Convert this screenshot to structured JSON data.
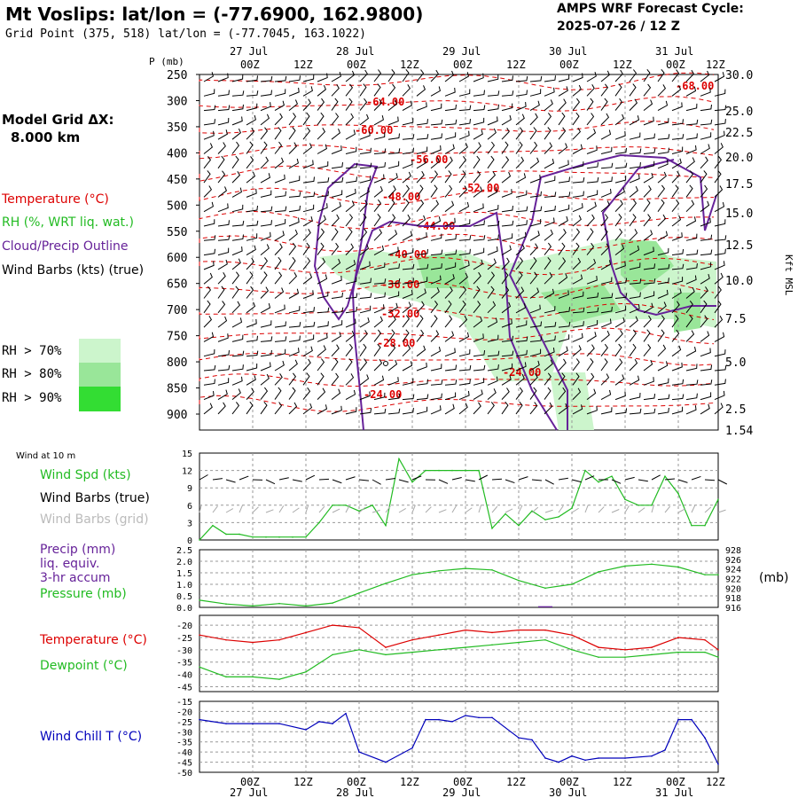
{
  "header": {
    "title": "Mt Voslips:  lat/lon = (-77.6900, 162.9800)",
    "grid_point": "Grid Point (375, 518) lat/lon = (-77.7045, 163.1022)",
    "cycle_line1": "AMPS WRF Forecast Cycle:",
    "cycle_line2": "2025-07-26 / 12  Z"
  },
  "sidebar": {
    "model_grid_label": "Model Grid ΔX:",
    "model_grid_value": "8.000 km",
    "legend_temperature": "Temperature (°C)",
    "legend_rh": "RH (%, WRT liq. wat.)",
    "legend_cloud": "Cloud/Precip Outline",
    "legend_wind": "Wind Barbs (kts) (true)",
    "rh_levels": [
      "RH > 70%",
      "RH > 80%",
      "RH > 90%"
    ],
    "rh_colors": [
      "#ccf5cc",
      "#99e699",
      "#33dd33"
    ]
  },
  "time_axis": {
    "hour_labels": [
      "00Z",
      "12Z",
      "00Z",
      "12Z",
      "00Z",
      "12Z",
      "00Z",
      "12Z",
      "00Z",
      "12Z"
    ],
    "date_labels": [
      "27 Jul",
      "28 Jul",
      "29 Jul",
      "30 Jul",
      "31 Jul"
    ]
  },
  "colors": {
    "temperature": "#dd0000",
    "rh_line": "#22bb22",
    "cloud": "#662299",
    "wind_chill": "#0000bb",
    "grid": "#999999",
    "precip": "#662299"
  },
  "chart_data": [
    {
      "type": "heatmap",
      "name": "cross-section",
      "ylabel": "P (mb)",
      "y2label": "Kft MSL",
      "pressure_ticks": [
        250,
        300,
        350,
        400,
        450,
        500,
        550,
        600,
        650,
        700,
        750,
        800,
        850,
        900
      ],
      "height_ticks": [
        "30.0",
        "25.0",
        "22.5",
        "20.0",
        "17.5",
        "15.0",
        "12.5",
        "10.0",
        "7.5",
        "5.0",
        "2.5",
        "1.54"
      ],
      "temperature_labels": [
        "-68.00",
        "-64.00",
        "-60.00",
        "-56.00",
        "-52.00",
        "-48.00",
        "-44.00",
        "-40.00",
        "-36.00",
        "-32.00",
        "-28.00",
        "-24.00",
        "-24.00"
      ]
    },
    {
      "type": "line",
      "name": "wind",
      "header": "Wind at 10 m",
      "labels": [
        "Wind Spd (kts)",
        "Wind Barbs (true)",
        "Wind Barbs (grid)"
      ],
      "yticks": [
        "15",
        "12",
        "9",
        "6",
        "3",
        "0"
      ],
      "ylim": [
        0,
        15
      ],
      "x": [
        0,
        3,
        6,
        9,
        12,
        15,
        18,
        21,
        24,
        27,
        30,
        33,
        36,
        39,
        42,
        45,
        48,
        51,
        54,
        57,
        60,
        63,
        66,
        69,
        72,
        75,
        78,
        81,
        84,
        87,
        90,
        93,
        96,
        99,
        102,
        105,
        108,
        111,
        114,
        117
      ],
      "values": [
        0,
        2.5,
        1,
        1,
        0.5,
        0.5,
        0.5,
        0.5,
        0.5,
        3,
        6,
        6,
        5,
        6,
        2.5,
        14,
        10,
        12,
        12,
        12,
        12,
        12,
        2,
        4.5,
        2.5,
        5,
        3.5,
        4,
        5.5,
        12,
        10,
        11,
        7,
        6,
        6,
        11,
        8,
        2.5,
        2.5,
        7
      ]
    },
    {
      "type": "line",
      "name": "precip-pressure",
      "labels": [
        "Precip (mm)",
        "liq. equiv.",
        "3-hr accum",
        "Pressure (mb)"
      ],
      "unit_right": "(mb)",
      "yticks_left": [
        "2.5",
        "2.0",
        "1.5",
        "1.0",
        "0.5",
        "0.0"
      ],
      "yticks_right": [
        "928",
        "926",
        "924",
        "922",
        "920",
        "918",
        "916"
      ],
      "ylim_left": [
        0,
        2.5
      ],
      "ylim_right": [
        916,
        928
      ],
      "x": [
        0,
        6,
        12,
        18,
        24,
        30,
        36,
        42,
        48,
        54,
        60,
        66,
        72,
        78,
        84,
        90,
        96,
        102,
        108,
        114,
        117
      ],
      "pressure": [
        917.5,
        916.7,
        916.3,
        916.8,
        916.3,
        916.9,
        919.0,
        921.0,
        922.8,
        923.6,
        924.1,
        923.8,
        921.6,
        920.0,
        920.8,
        923.4,
        924.6,
        925.0,
        924.4,
        922.8,
        922.8
      ],
      "precip_x": [
        78
      ],
      "precip_values": [
        0.05
      ]
    },
    {
      "type": "line",
      "name": "temperature-dewpoint",
      "labels": [
        "Temperature (°C)",
        "Dewpoint (°C)"
      ],
      "yticks": [
        "-20",
        "-25",
        "-30",
        "-35",
        "-40",
        "-45"
      ],
      "ylim": [
        -47,
        -16
      ],
      "x": [
        0,
        6,
        12,
        18,
        24,
        30,
        36,
        42,
        48,
        54,
        60,
        66,
        72,
        78,
        84,
        90,
        96,
        102,
        108,
        114,
        117
      ],
      "temperature": [
        -24,
        -26,
        -27,
        -26,
        -23,
        -20,
        -21,
        -29,
        -26,
        -24,
        -22,
        -23,
        -22,
        -22,
        -24,
        -29,
        -30,
        -29,
        -25,
        -26,
        -30
      ],
      "dewpoint": [
        -37,
        -41,
        -41,
        -42,
        -39,
        -32,
        -30,
        -32,
        -31,
        -30,
        -29,
        -28,
        -27,
        -26,
        -30,
        -33,
        -33,
        -32,
        -31,
        -31,
        -33
      ]
    },
    {
      "type": "line",
      "name": "wind-chill",
      "labels": [
        "Wind Chill T (°C)"
      ],
      "yticks": [
        "-15",
        "-20",
        "-25",
        "-30",
        "-35",
        "-40",
        "-45",
        "-50"
      ],
      "ylim": [
        -50,
        -15
      ],
      "x": [
        0,
        6,
        12,
        18,
        24,
        27,
        30,
        33,
        36,
        42,
        48,
        51,
        54,
        57,
        60,
        63,
        66,
        72,
        75,
        78,
        81,
        84,
        87,
        90,
        96,
        102,
        105,
        108,
        111,
        114,
        117
      ],
      "values": [
        -24,
        -26,
        -26,
        -26,
        -29,
        -25,
        -26,
        -21,
        -40,
        -45,
        -38,
        -24,
        -24,
        -25,
        -22,
        -23,
        -23,
        -33,
        -34,
        -43,
        -45,
        -42,
        -44,
        -43,
        -43,
        -42,
        -39,
        -24,
        -24,
        -33,
        -46
      ]
    }
  ]
}
